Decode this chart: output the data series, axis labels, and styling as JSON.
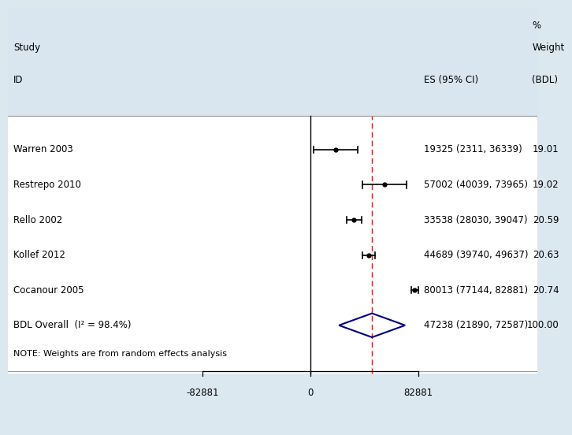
{
  "studies": [
    "Warren 2003",
    "Restrepo 2010",
    "Rello 2002",
    "Kollef 2012",
    "Cocanour 2005"
  ],
  "es": [
    19325,
    57002,
    33538,
    44689,
    80013
  ],
  "ci_low": [
    2311,
    40039,
    28030,
    39740,
    77144
  ],
  "ci_high": [
    36339,
    73965,
    39047,
    49637,
    82881
  ],
  "weights": [
    "19.01",
    "19.02",
    "20.59",
    "20.63",
    "20.74"
  ],
  "es_labels": [
    "19325 (2311, 36339)",
    "57002 (40039, 73965)",
    "33538 (28030, 39047)",
    "44689 (39740, 49637)",
    "80013 (77144, 82881)"
  ],
  "overall_es": 47238,
  "overall_ci_low": 21890,
  "overall_ci_high": 72587,
  "overall_label": "47238 (21890, 72587)",
  "overall_weight": "100.00",
  "overall_i2": "98.4%",
  "x_min": -82881,
  "x_max": 82881,
  "x_ticks": [
    -82881,
    0,
    82881
  ],
  "dashed_line_x": 47238,
  "bg_color": "#dce8f0",
  "panel_color": "#ffffff",
  "note": "NOTE: Weights are from random effects analysis"
}
